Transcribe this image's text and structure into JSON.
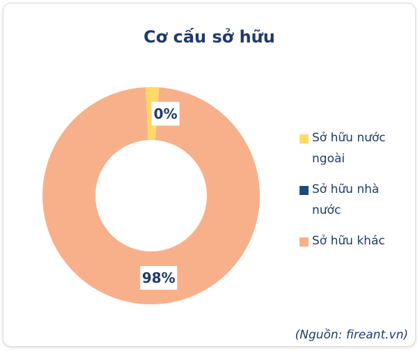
{
  "chart_data": {
    "type": "donut",
    "title": "Cơ cấu sở hữu",
    "categories": [
      "Sở hữu nước ngoài",
      "Sở hữu nhà nước",
      "Sở hữu khác"
    ],
    "values": [
      2,
      0,
      98
    ],
    "value_labels": [
      null,
      "0%",
      "98%"
    ],
    "colors": [
      "#ffd966",
      "#1c4a7e",
      "#f8b08a"
    ],
    "legend": "right",
    "source": "(Nguồn: fireant.vn)"
  }
}
